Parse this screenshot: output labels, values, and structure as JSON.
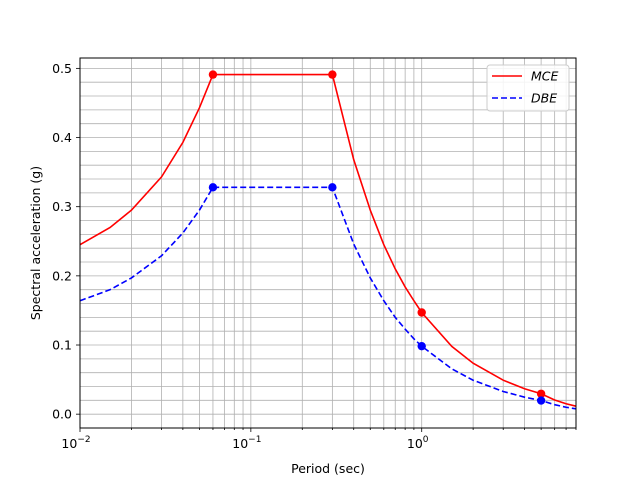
{
  "chart_data": {
    "type": "line",
    "title": "",
    "xlabel": "Period (sec)",
    "ylabel": "Spectral acceleration (g)",
    "xscale": "log",
    "xlim": [
      0.01,
      8
    ],
    "ylim": [
      -0.02,
      0.515
    ],
    "grid": "both (major and minor)",
    "legend_position": "top-right",
    "x_ticks": [
      {
        "value": 0.01,
        "base": "10",
        "exp": "−2"
      },
      {
        "value": 0.1,
        "base": "10",
        "exp": "−1"
      },
      {
        "value": 1,
        "base": "10",
        "exp": "0"
      }
    ],
    "y_ticks": [
      {
        "value": 0.0,
        "label": "0.0"
      },
      {
        "value": 0.1,
        "label": "0.1"
      },
      {
        "value": 0.2,
        "label": "0.2"
      },
      {
        "value": 0.3,
        "label": "0.3"
      },
      {
        "value": 0.4,
        "label": "0.4"
      },
      {
        "value": 0.5,
        "label": "0.5"
      }
    ],
    "series": [
      {
        "name": "MCE",
        "color": "#ff0000",
        "style": "solid",
        "points": [
          [
            0.01,
            0.245
          ],
          [
            0.015,
            0.27
          ],
          [
            0.02,
            0.295
          ],
          [
            0.03,
            0.343
          ],
          [
            0.04,
            0.393
          ],
          [
            0.05,
            0.443
          ],
          [
            0.06,
            0.491
          ],
          [
            0.1,
            0.491
          ],
          [
            0.2,
            0.491
          ],
          [
            0.3,
            0.491
          ],
          [
            0.4,
            0.368
          ],
          [
            0.5,
            0.295
          ],
          [
            0.6,
            0.245
          ],
          [
            0.7,
            0.21
          ],
          [
            0.8,
            0.184
          ],
          [
            0.9,
            0.164
          ],
          [
            1.0,
            0.147
          ],
          [
            1.5,
            0.098
          ],
          [
            2,
            0.0737
          ],
          [
            3,
            0.0491
          ],
          [
            4,
            0.0368
          ],
          [
            5,
            0.0295
          ],
          [
            6,
            0.0205
          ],
          [
            7,
            0.015
          ],
          [
            8,
            0.0115
          ]
        ],
        "markers": [
          [
            0.06,
            0.491
          ],
          [
            0.3,
            0.491
          ],
          [
            1.0,
            0.147
          ],
          [
            5.0,
            0.0295
          ]
        ]
      },
      {
        "name": "DBE",
        "color": "#0000ff",
        "style": "dashed",
        "points": [
          [
            0.01,
            0.164
          ],
          [
            0.015,
            0.18
          ],
          [
            0.02,
            0.197
          ],
          [
            0.03,
            0.229
          ],
          [
            0.04,
            0.262
          ],
          [
            0.05,
            0.295
          ],
          [
            0.06,
            0.328
          ],
          [
            0.1,
            0.328
          ],
          [
            0.2,
            0.328
          ],
          [
            0.3,
            0.328
          ],
          [
            0.4,
            0.246
          ],
          [
            0.5,
            0.197
          ],
          [
            0.6,
            0.164
          ],
          [
            0.7,
            0.14
          ],
          [
            0.8,
            0.123
          ],
          [
            0.9,
            0.109
          ],
          [
            1.0,
            0.0983
          ],
          [
            1.5,
            0.0655
          ],
          [
            2,
            0.0491
          ],
          [
            3,
            0.0328
          ],
          [
            4,
            0.0246
          ],
          [
            5,
            0.0197
          ],
          [
            6,
            0.0137
          ],
          [
            7,
            0.01
          ],
          [
            8,
            0.0077
          ]
        ],
        "markers": [
          [
            0.06,
            0.328
          ],
          [
            0.3,
            0.328
          ],
          [
            1.0,
            0.0983
          ],
          [
            5.0,
            0.0197
          ]
        ]
      }
    ],
    "grid_color": "#b0b0b0"
  }
}
